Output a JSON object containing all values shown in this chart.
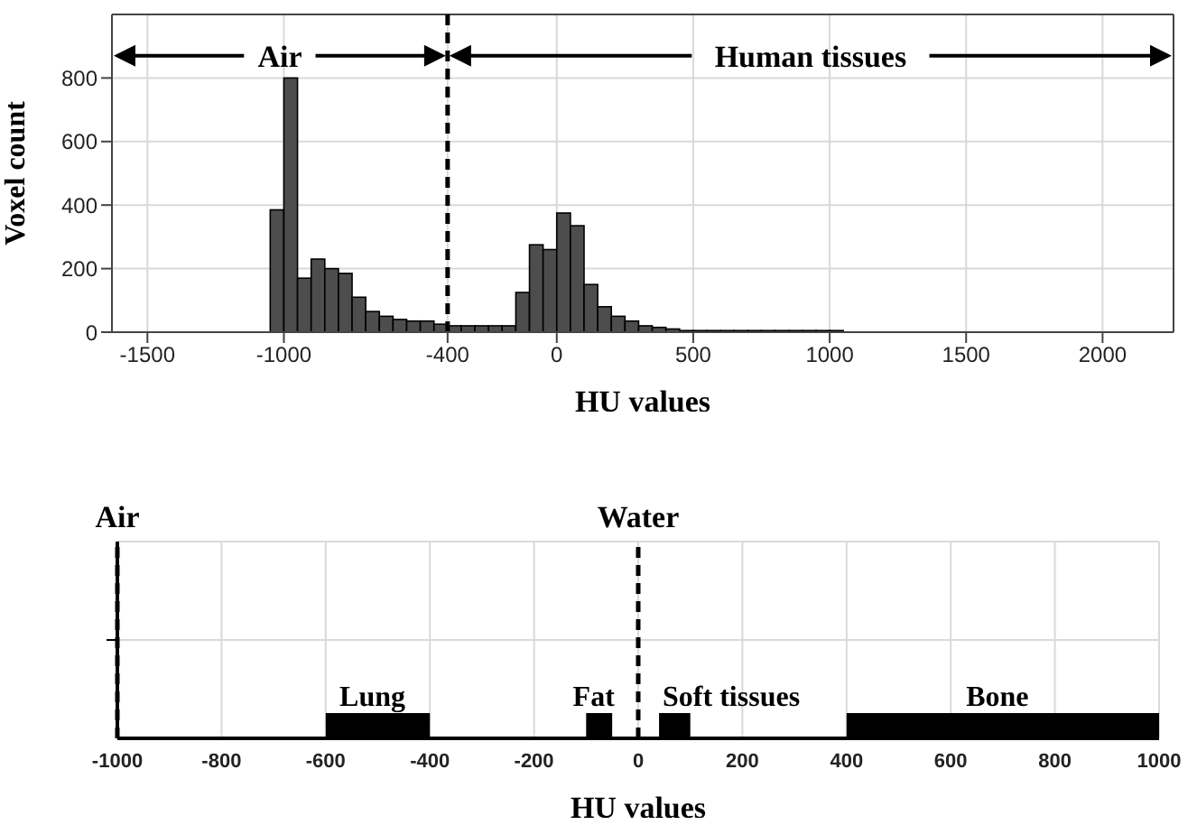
{
  "chart_data": [
    {
      "type": "histogram",
      "xlabel": "HU values",
      "ylabel": "Voxel count",
      "color": "#4d4d4d",
      "bins": [
        -1050,
        -1000,
        -950,
        -900,
        -850,
        -800,
        -750,
        -700,
        -650,
        -600,
        -550,
        -500,
        -450,
        -400,
        -350,
        -300,
        -250,
        -200,
        -150,
        -100,
        -50,
        0,
        50,
        100,
        150,
        200,
        250,
        300,
        350,
        400,
        450,
        500,
        550,
        600,
        650,
        700,
        750,
        800,
        850,
        900,
        950,
        1000,
        1050
      ],
      "values": [
        385,
        800,
        170,
        230,
        200,
        185,
        110,
        65,
        50,
        40,
        35,
        35,
        25,
        20,
        20,
        20,
        20,
        20,
        125,
        275,
        260,
        375,
        335,
        150,
        80,
        50,
        35,
        20,
        15,
        10,
        5,
        5,
        5,
        5,
        5,
        5,
        5,
        5,
        5,
        5,
        5,
        5
      ],
      "xlim": [
        -1630,
        2260
      ],
      "xticks": [
        -1500,
        -1000,
        -400,
        0,
        500,
        1000,
        1500,
        2000
      ],
      "ylim": [
        0,
        1000
      ],
      "yticks": [
        0,
        200,
        400,
        600,
        800
      ],
      "grid": true,
      "ref_lines": [
        {
          "axis": "x",
          "value": -400,
          "label": null,
          "color": "#000000",
          "line_style": "dashed"
        }
      ],
      "annotations": [
        {
          "text": "Air",
          "x": -400,
          "y": 870
        },
        {
          "text": "Human tissues",
          "x": -400,
          "y": 870
        }
      ]
    },
    {
      "type": "bar",
      "orientation": "horizontal",
      "xlabel": "HU values",
      "categories": [
        null
      ],
      "series": [
        {
          "name": "Lung",
          "color": "#000000",
          "values": [
            200
          ],
          "base": [
            -600
          ]
        },
        {
          "name": "Fat",
          "color": "#000000",
          "values": [
            50
          ],
          "base": [
            -100
          ]
        },
        {
          "name": "Soft tissues",
          "color": "#000000",
          "values": [
            60
          ],
          "base": [
            40
          ]
        },
        {
          "name": "Bone",
          "color": "#000000",
          "values": [
            600
          ],
          "base": [
            400
          ]
        }
      ],
      "xlim": [
        -1000,
        1000
      ],
      "xticks": [
        -1000,
        -800,
        -600,
        -400,
        -200,
        0,
        200,
        400,
        600,
        800,
        1000
      ],
      "grid": true,
      "ref_lines": [
        {
          "axis": "x",
          "value": -1000,
          "label": "Air",
          "color": "#000000",
          "line_style": "dashed"
        },
        {
          "axis": "x",
          "value": 0,
          "label": "Water",
          "color": "#000000",
          "line_style": "dashed"
        }
      ]
    }
  ]
}
